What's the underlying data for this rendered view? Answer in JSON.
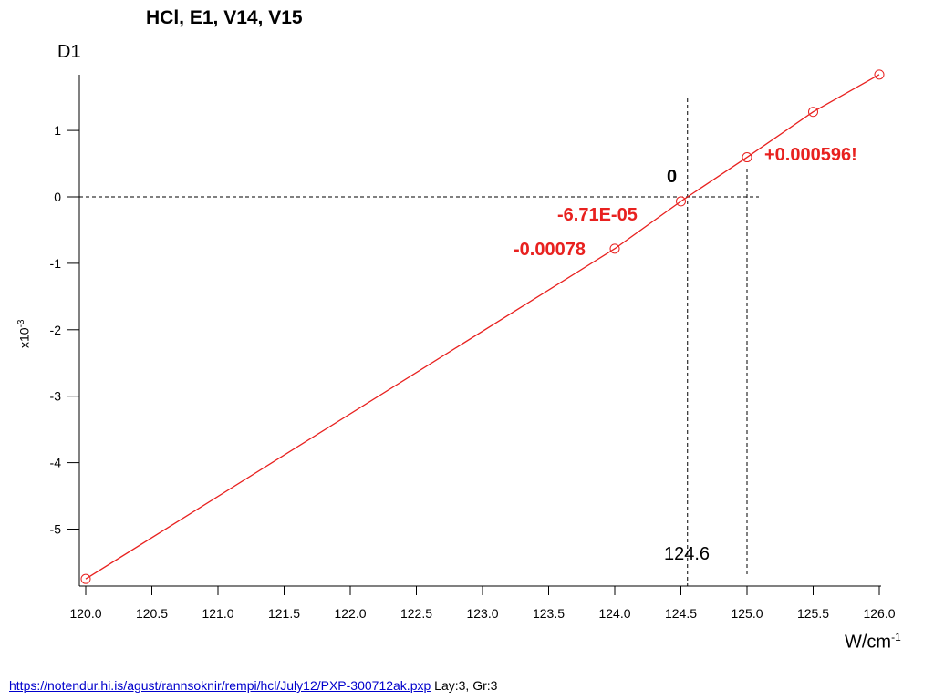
{
  "chart_data": {
    "type": "line",
    "title": "HCl, E1, V14, V15",
    "ylabel": "D1",
    "y_multiplier_base": "x10",
    "y_multiplier_exp": "-3",
    "xlabel_base": "W/cm",
    "xlabel_exp": "-1",
    "xlim": [
      120.0,
      126.0
    ],
    "ylim": [
      -5.8,
      1.85
    ],
    "x_ticks": [
      "120.0",
      "120.5",
      "121.0",
      "121.5",
      "122.0",
      "122.5",
      "123.0",
      "123.5",
      "124.0",
      "124.5",
      "125.0",
      "125.5",
      "126.0"
    ],
    "y_ticks": [
      "1",
      "0",
      "-1",
      "-2",
      "-3",
      "-4",
      "-5"
    ],
    "series": [
      {
        "color": "#e8211f",
        "x": [
          120.0,
          124.0,
          124.5,
          125.0,
          125.5,
          126.0
        ],
        "y": [
          -5.75,
          -0.78,
          -0.0671,
          0.596,
          1.28,
          1.84
        ]
      }
    ],
    "annotations": [
      {
        "text": "+0.000596!",
        "color": "#e8211f"
      },
      {
        "text": "0",
        "color": "#000000"
      },
      {
        "text": "-6.71E-05",
        "color": "#e8211f"
      },
      {
        "text": "-0.00078",
        "color": "#e8211f"
      }
    ],
    "reference_lines": {
      "zero_line_y": 0,
      "vertical_x": [
        124.55,
        125.0
      ],
      "crossing_label": "124.6"
    }
  },
  "footer": {
    "link_text": "https://notendur.hi.is/agust/rannsoknir/rempi/hcl/July12/PXP-300712ak.pxp",
    "info": "Lay:3, Gr:3"
  }
}
